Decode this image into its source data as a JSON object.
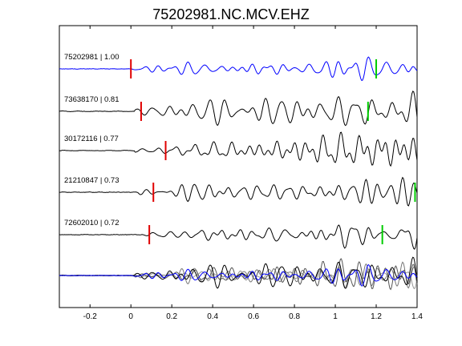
{
  "chart_data": {
    "type": "line",
    "title": "75202981.NC.MCV.EHZ",
    "xlabel": "",
    "ylabel": "",
    "xlim": [
      -0.35,
      1.4
    ],
    "xticks": [
      -0.2,
      0,
      0.2,
      0.4,
      0.6,
      0.8,
      1,
      1.2,
      1.4
    ],
    "xtick_labels": [
      "-0.2",
      "0",
      "0.2",
      "0.4",
      "0.6",
      "0.8",
      "1",
      "1.2",
      "1.4"
    ],
    "grid": false,
    "series": [
      {
        "name": "75202981 | 1.00",
        "color": "#0000ff",
        "pick_red": 0.0,
        "pick_green": 1.2,
        "onset": 0.0,
        "amp_growth": 1.0
      },
      {
        "name": "73638170 | 0.81",
        "color": "#000000",
        "pick_red": 0.05,
        "pick_green": 1.16,
        "onset": 0.02,
        "amp_growth": 1.1
      },
      {
        "name": "30172116 | 0.77",
        "color": "#000000",
        "pick_red": 0.17,
        "pick_green": null,
        "onset": 0.02,
        "amp_growth": 1.15
      },
      {
        "name": "21210847 | 0.73",
        "color": "#000000",
        "pick_red": 0.11,
        "pick_green": 1.39,
        "onset": 0.03,
        "amp_growth": 1.0
      },
      {
        "name": "72602010 | 0.72",
        "color": "#000000",
        "pick_red": 0.09,
        "pick_green": 1.23,
        "onset": 0.06,
        "amp_growth": 1.2
      }
    ],
    "stack": {
      "colors": [
        "#0000ff",
        "#000000",
        "#555555",
        "#777777",
        "#999999"
      ]
    }
  }
}
